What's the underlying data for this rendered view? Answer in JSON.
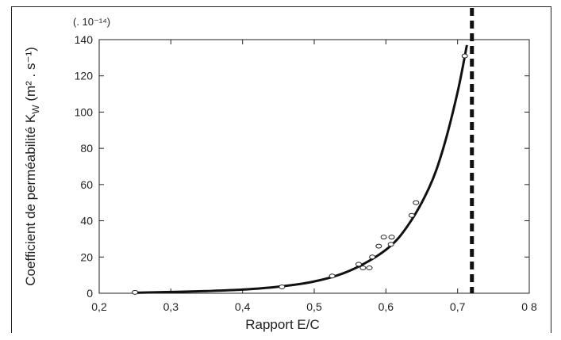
{
  "chart_data": {
    "type": "scatter",
    "title": "",
    "xlabel": "Rapport E/C",
    "ylabel": "Coefficient de perméabilité K",
    "ylabel_subscript": "W",
    "ylabel_units": "(m² . s⁻¹)",
    "y_multiplier": "(. 10⁻¹⁴)",
    "xlim": [
      0.2,
      0.8
    ],
    "ylim": [
      0,
      140
    ],
    "x_ticks": [
      0.2,
      0.3,
      0.4,
      0.5,
      0.6,
      0.7,
      0.8
    ],
    "x_tick_labels": [
      "0,2",
      "0,3",
      "0,4",
      "0,5",
      "0,6",
      "0,7",
      "0 8"
    ],
    "y_ticks": [
      0,
      20,
      40,
      60,
      80,
      100,
      120,
      140
    ],
    "y_tick_labels": [
      "0",
      "20",
      "40",
      "60",
      "80",
      "100",
      "120",
      "140"
    ],
    "grid": false,
    "points": [
      {
        "x": 0.25,
        "y": 0.5
      },
      {
        "x": 0.455,
        "y": 3.5
      },
      {
        "x": 0.525,
        "y": 9.5
      },
      {
        "x": 0.562,
        "y": 16
      },
      {
        "x": 0.568,
        "y": 14
      },
      {
        "x": 0.577,
        "y": 14
      },
      {
        "x": 0.581,
        "y": 20
      },
      {
        "x": 0.59,
        "y": 26
      },
      {
        "x": 0.597,
        "y": 31
      },
      {
        "x": 0.607,
        "y": 27
      },
      {
        "x": 0.608,
        "y": 31
      },
      {
        "x": 0.636,
        "y": 43
      },
      {
        "x": 0.642,
        "y": 50
      },
      {
        "x": 0.71,
        "y": 131
      }
    ],
    "fit_curve": {
      "x": [
        0.25,
        0.3,
        0.35,
        0.4,
        0.45,
        0.5,
        0.55,
        0.6,
        0.63,
        0.66,
        0.68,
        0.7,
        0.713
      ],
      "y": [
        0.3,
        0.7,
        1.2,
        2.0,
        3.6,
        6.5,
        12.5,
        24,
        37,
        58,
        80,
        111,
        137
      ]
    },
    "vertical_line": {
      "x": 0.72,
      "style": "dashed"
    }
  }
}
